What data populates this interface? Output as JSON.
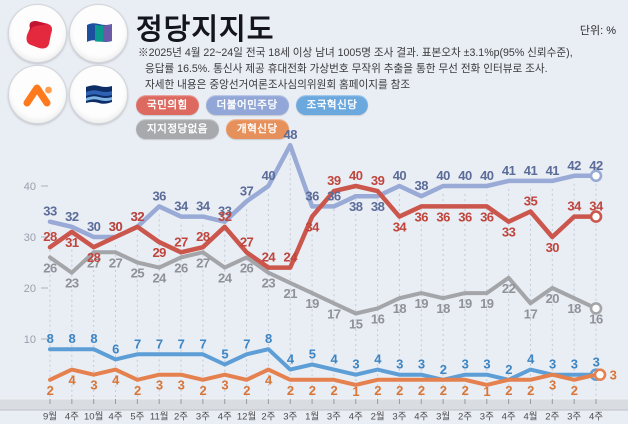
{
  "header": {
    "title": "정당지지도",
    "unit_label": "단위: %",
    "note_lines": [
      "※2025년 4월 22~24일 전국 18세 이상 남녀 1005명 조사 결과. 표본오차 ±3.1%p(95% 신뢰수준),",
      "응답률 16.5%. 통신사 제공 휴대전화 가상번호 무작위 추출을 통한 무선 전화 인터뷰로 조사.",
      "자세한 내용은 중앙선거여론조사심의위원회 홈페이지를 참조"
    ]
  },
  "legend": {
    "rows": [
      [
        {
          "label": "국민의힘",
          "color": "#dc6a60"
        },
        {
          "label": "더불어민주당",
          "color": "#92a7d8"
        },
        {
          "label": "조국혁신당",
          "color": "#6ba8dd"
        }
      ],
      [
        {
          "label": "지지정당없음",
          "color": "#a7a9ac"
        },
        {
          "label": "개혁신당",
          "color": "#e6915b"
        }
      ]
    ]
  },
  "chart_data": {
    "type": "line",
    "title": "정당지지도",
    "unit": "%",
    "ylim": [
      0,
      50
    ],
    "yticks": [
      40,
      30,
      20,
      10
    ],
    "grid": "dashed-vertical",
    "legend_position": "top-left",
    "categories": [
      "9월",
      "4주",
      "10월",
      "4주",
      "5주",
      "11월",
      "2주",
      "3주",
      "4주",
      "12월",
      "2주",
      "3주",
      "1월",
      "3주",
      "4주",
      "2월",
      "3주",
      "4주",
      "3월",
      "2주",
      "3주",
      "4주",
      "4월",
      "2주",
      "3주",
      "4주"
    ],
    "series": [
      {
        "key": "ppp",
        "name": "국민의힘",
        "color": "#cb564c",
        "label_color": "#c0453c",
        "values": [
          28,
          31,
          28,
          30,
          32,
          29,
          27,
          28,
          32,
          27,
          24,
          24,
          34,
          39,
          40,
          39,
          34,
          36,
          36,
          36,
          36,
          33,
          35,
          30,
          34,
          34
        ],
        "label_below": [
          1,
          2,
          5,
          12,
          16,
          17,
          18,
          19,
          20,
          21,
          23
        ]
      },
      {
        "key": "dpk",
        "name": "더불어민주당",
        "color": "#98aad5",
        "label_color": "#5c6c99",
        "values": [
          33,
          32,
          30,
          30,
          32,
          36,
          34,
          34,
          33,
          37,
          40,
          48,
          36,
          36,
          38,
          38,
          40,
          38,
          40,
          40,
          40,
          41,
          41,
          41,
          42,
          42
        ],
        "label_below": [
          14,
          15
        ]
      },
      {
        "key": "rkp",
        "name": "조국혁신당",
        "color": "#5d9ed6",
        "label_color": "#3d85c3",
        "values": [
          8,
          8,
          8,
          6,
          7,
          7,
          7,
          7,
          5,
          7,
          8,
          4,
          5,
          4,
          3,
          4,
          3,
          3,
          2,
          3,
          3,
          2,
          4,
          3,
          3,
          3
        ],
        "label_below": []
      },
      {
        "key": "none",
        "name": "지지정당없음",
        "color": "#a3a5a8",
        "label_color": "#8f9298",
        "values": [
          26,
          23,
          27,
          27,
          25,
          24,
          26,
          27,
          24,
          26,
          23,
          21,
          19,
          17,
          15,
          16,
          18,
          19,
          18,
          19,
          19,
          22,
          17,
          20,
          18,
          16
        ],
        "label_below": "all"
      },
      {
        "key": "reform",
        "name": "개혁신당",
        "color": "#e5814e",
        "label_color": "#d97637",
        "values": [
          2,
          4,
          3,
          4,
          2,
          3,
          3,
          2,
          3,
          2,
          4,
          2,
          2,
          2,
          1,
          2,
          2,
          2,
          2,
          2,
          1,
          2,
          2,
          3,
          2,
          3
        ],
        "label_below": "all"
      }
    ]
  }
}
